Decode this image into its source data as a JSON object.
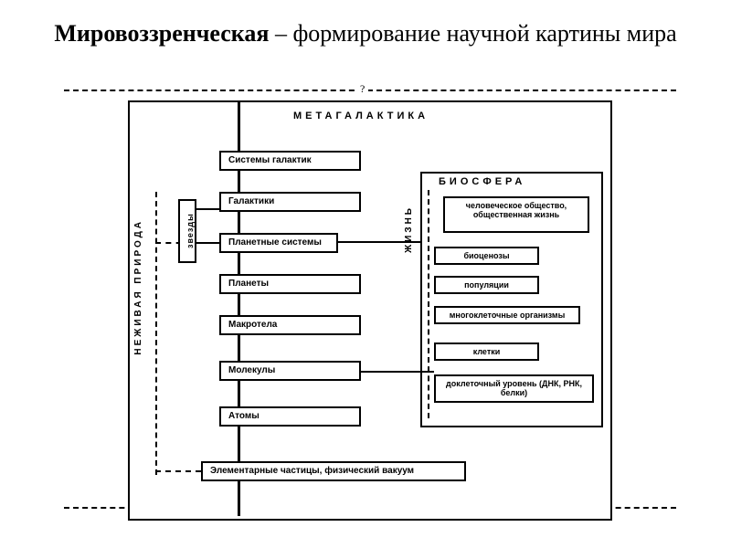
{
  "title": {
    "bold": "Мировоззренческая",
    "rest": " – формирование научной картины мира"
  },
  "diagram": {
    "top_q": "?",
    "bot_q": "?",
    "header": "МЕТАГАЛАКТИКА",
    "left_label": "НЕЖИВАЯ ПРИРОДА",
    "life_label": "ЖИЗНЬ",
    "zvezdy": "звезды",
    "levels": {
      "l1": "Системы галактик",
      "l2": "Галактики",
      "l3": "Планетные системы",
      "l4": "Планеты",
      "l5": "Макротела",
      "l6": "Молекулы",
      "l7": "Атомы",
      "l8": "Элементарные частицы, физический вакуум"
    },
    "biosphere": {
      "title": "БИОСФЕРА",
      "society": "человеческое общество, общественная жизнь",
      "biocenoses": "биоценозы",
      "populations": "популяции",
      "multicell": "многоклеточные организмы",
      "cells": "клетки",
      "dna": "доклеточный уровень (ДНК, РНК, белки)"
    },
    "colors": {
      "line": "#000000",
      "bg": "#ffffff"
    }
  }
}
